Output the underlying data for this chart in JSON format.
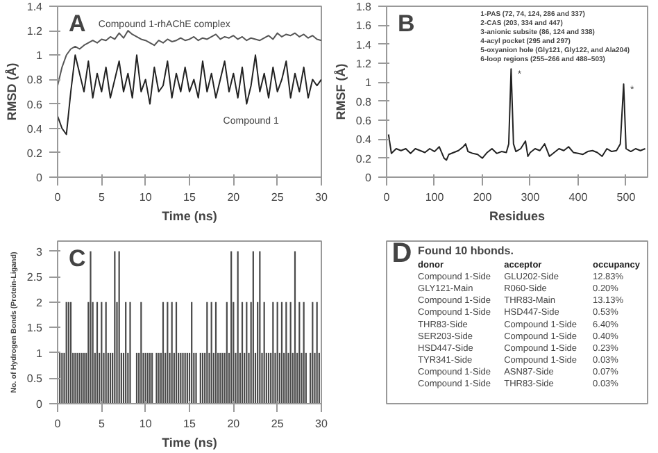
{
  "chart_data": [
    {
      "type": "line",
      "xlabel": "Time (ns)",
      "ylabel": "RMSD (Å)",
      "xlim": [
        0,
        30
      ],
      "ylim": [
        0,
        1.4
      ],
      "xticks": [
        0,
        5,
        10,
        15,
        20,
        25,
        30
      ],
      "yticks": [
        0,
        0.2,
        0.4,
        0.6,
        0.8,
        1,
        1.2,
        1.4
      ],
      "x": [
        0,
        0.5,
        1,
        1.5,
        2,
        2.5,
        3,
        3.5,
        4,
        4.5,
        5,
        5.5,
        6,
        6.5,
        7,
        7.5,
        8,
        8.5,
        9,
        9.5,
        10,
        10.5,
        11,
        11.5,
        12,
        12.5,
        13,
        13.5,
        14,
        14.5,
        15,
        15.5,
        16,
        16.5,
        17,
        17.5,
        18,
        18.5,
        19,
        19.5,
        20,
        20.5,
        21,
        21.5,
        22,
        22.5,
        23,
        23.5,
        24,
        24.5,
        25,
        25.5,
        26,
        26.5,
        27,
        27.5,
        28,
        28.5,
        29,
        29.5,
        30
      ],
      "series": [
        {
          "color": "#555555",
          "values": [
            0.75,
            0.9,
            1.0,
            1.05,
            1.07,
            1.05,
            1.08,
            1.1,
            1.12,
            1.1,
            1.13,
            1.12,
            1.15,
            1.13,
            1.18,
            1.14,
            1.2,
            1.17,
            1.15,
            1.13,
            1.12,
            1.1,
            1.08,
            1.12,
            1.1,
            1.13,
            1.11,
            1.12,
            1.14,
            1.12,
            1.13,
            1.15,
            1.12,
            1.14,
            1.13,
            1.15,
            1.17,
            1.13,
            1.15,
            1.14,
            1.16,
            1.13,
            1.15,
            1.12,
            1.14,
            1.13,
            1.12,
            1.14,
            1.16,
            1.13,
            1.18,
            1.15,
            1.17,
            1.16,
            1.18,
            1.15,
            1.17,
            1.14,
            1.16,
            1.13,
            1.12
          ]
        },
        {
          "color": "#222222",
          "values": [
            0.5,
            0.4,
            0.35,
            0.7,
            1.0,
            0.85,
            0.7,
            0.95,
            0.65,
            0.85,
            0.7,
            0.9,
            0.65,
            0.8,
            0.95,
            0.7,
            0.85,
            0.65,
            1.0,
            0.7,
            0.8,
            0.6,
            0.9,
            0.7,
            0.75,
            0.95,
            0.65,
            0.85,
            0.7,
            0.9,
            0.7,
            0.8,
            0.65,
            0.95,
            0.7,
            0.85,
            0.65,
            0.8,
            0.95,
            0.7,
            0.85,
            0.65,
            0.9,
            0.6,
            0.75,
            1.0,
            0.7,
            0.85,
            0.65,
            0.9,
            0.7,
            0.8,
            0.95,
            0.65,
            0.85,
            0.7,
            0.9,
            0.65,
            0.8,
            0.75,
            0.8
          ]
        }
      ],
      "annotations": [
        "A",
        {
          "text": "Compound 1-rhAChE complex",
          "x": 19,
          "y": 1.17
        },
        {
          "text": "Compound 1",
          "x": 22,
          "y": 0.6
        }
      ]
    },
    {
      "type": "line",
      "xlabel": "Residues",
      "ylabel": "RMSF (Å)",
      "xlim": [
        0,
        545
      ],
      "ylim": [
        0,
        1.8
      ],
      "xticks": [
        0,
        100,
        200,
        300,
        400,
        500
      ],
      "yticks": [
        0,
        0.2,
        0.4,
        0.6,
        0.8,
        1,
        1.2,
        1.4,
        1.6,
        1.8
      ],
      "x": [
        4,
        10,
        20,
        30,
        40,
        50,
        60,
        70,
        80,
        90,
        100,
        110,
        120,
        125,
        130,
        140,
        150,
        160,
        165,
        170,
        180,
        190,
        200,
        210,
        220,
        230,
        240,
        250,
        255,
        260,
        265,
        270,
        280,
        290,
        295,
        300,
        310,
        320,
        330,
        340,
        350,
        360,
        370,
        380,
        390,
        400,
        410,
        420,
        430,
        440,
        450,
        460,
        470,
        480,
        488,
        495,
        500,
        510,
        520,
        530,
        540
      ],
      "series": [
        {
          "color": "#222222",
          "values": [
            0.45,
            0.25,
            0.3,
            0.28,
            0.3,
            0.25,
            0.3,
            0.28,
            0.26,
            0.3,
            0.27,
            0.32,
            0.2,
            0.18,
            0.24,
            0.26,
            0.28,
            0.32,
            0.35,
            0.27,
            0.25,
            0.24,
            0.2,
            0.26,
            0.3,
            0.25,
            0.27,
            0.26,
            0.35,
            1.14,
            0.35,
            0.27,
            0.3,
            0.38,
            0.22,
            0.26,
            0.3,
            0.28,
            0.35,
            0.22,
            0.26,
            0.3,
            0.28,
            0.32,
            0.26,
            0.25,
            0.24,
            0.27,
            0.28,
            0.26,
            0.22,
            0.3,
            0.27,
            0.28,
            0.35,
            0.98,
            0.3,
            0.27,
            0.3,
            0.28,
            0.3
          ]
        }
      ],
      "annotations": [
        "B",
        "1-PAS (72, 74, 124, 286 and 337)",
        "2-CAS (203, 334 and 447)",
        "3-anionic subsite (86, 124 and 338)",
        "4-acyl pocket (295 and 297)",
        "5-oxyanion hole (Gly121, Gly122, and Ala204)",
        "6-loop regions (255–266 and 488–503)",
        {
          "text": "*",
          "x": 262,
          "y": 1.14
        },
        {
          "text": "*",
          "x": 497,
          "y": 0.98
        }
      ]
    },
    {
      "type": "bar",
      "xlabel": "Time (ns)",
      "ylabel": "No. of Hydrogen Bonds (Protein-Ligand)",
      "xlim": [
        0,
        30
      ],
      "ylim": [
        0,
        3.2
      ],
      "xticks": [
        0,
        5,
        10,
        15,
        20,
        25,
        30
      ],
      "yticks": [
        0,
        0.5,
        1,
        1.5,
        2,
        2.5,
        3
      ],
      "color": "#4a4a4a",
      "x": [
        0.25,
        0.5,
        0.75,
        1,
        1.25,
        1.5,
        1.75,
        2,
        2.25,
        2.5,
        2.75,
        3,
        3.25,
        3.5,
        3.75,
        4,
        4.25,
        4.5,
        4.75,
        5,
        5.25,
        5.5,
        5.75,
        6,
        6.25,
        6.5,
        6.75,
        7,
        7.25,
        7.5,
        7.75,
        8,
        8.25,
        8.5,
        8.75,
        9,
        9.25,
        9.5,
        9.75,
        10,
        10.25,
        10.5,
        10.75,
        11,
        11.25,
        11.5,
        11.75,
        12,
        12.25,
        12.5,
        12.75,
        13,
        13.25,
        13.5,
        13.75,
        14,
        14.25,
        14.5,
        14.75,
        15,
        15.25,
        15.5,
        15.75,
        16,
        16.25,
        16.5,
        16.75,
        17,
        17.25,
        17.5,
        17.75,
        18,
        18.25,
        18.5,
        18.75,
        19,
        19.25,
        19.5,
        19.75,
        20,
        20.25,
        20.5,
        20.75,
        21,
        21.25,
        21.5,
        21.75,
        22,
        22.25,
        22.5,
        22.75,
        23,
        23.25,
        23.5,
        23.75,
        24,
        24.25,
        24.5,
        24.75,
        25,
        25.25,
        25.5,
        25.75,
        26,
        26.25,
        26.5,
        26.75,
        27,
        27.25,
        27.5,
        27.75,
        28,
        28.25,
        28.5,
        28.75,
        29,
        29.25,
        29.5,
        29.75
      ],
      "values": [
        1,
        1,
        1,
        2,
        2,
        2,
        1,
        1,
        1,
        1,
        1,
        1,
        1,
        2,
        3,
        2,
        1,
        2,
        1,
        2,
        1,
        2,
        1,
        1,
        1,
        3,
        2,
        3,
        1,
        1,
        2,
        1,
        2,
        0,
        0,
        1,
        1,
        2,
        1,
        1,
        1,
        1,
        1,
        0,
        1,
        1,
        1,
        2,
        1,
        2,
        1,
        2,
        1,
        2,
        1,
        1,
        1,
        1,
        1,
        1,
        2,
        1,
        1,
        0,
        1,
        1,
        1,
        2,
        1,
        2,
        1,
        2,
        1,
        1,
        1,
        1,
        2,
        1,
        3,
        2,
        1,
        3,
        1,
        2,
        1,
        2,
        1,
        2,
        3,
        1,
        2,
        3,
        1,
        2,
        1,
        1,
        1,
        2,
        1,
        2,
        1,
        2,
        1,
        2,
        1,
        2,
        1,
        3,
        1,
        2,
        1,
        2,
        1,
        0,
        1,
        2,
        1,
        2,
        1
      ],
      "annotations": [
        "C"
      ]
    },
    {
      "type": "other",
      "title": "Found 10 hbonds.",
      "annotations": [
        "D",
        "donor",
        "acceptor",
        "occupancy",
        "Compound 1-Side",
        "GLU202-Side",
        "12.83%",
        "GLY121-Main",
        "R060-Side",
        "0.20%",
        "Compound 1-Side",
        "THR83-Main",
        "13.13%",
        "Compound 1-Side",
        "HSD447-Side",
        "0.53%",
        "THR83-Side",
        "Compound 1-Side",
        "6.40%",
        "SER203-Side",
        "Compound 1-Side",
        "0.40%",
        "HSD447-Side",
        "Compound 1-Side",
        "0.23%",
        "TYR341-Side",
        "Compound 1-Side",
        "0.03%",
        "Compound 1-Side",
        "ASN87-Side",
        "0.07%",
        "Compound 1-Side",
        "THR83-Side",
        "0.03%"
      ]
    }
  ]
}
